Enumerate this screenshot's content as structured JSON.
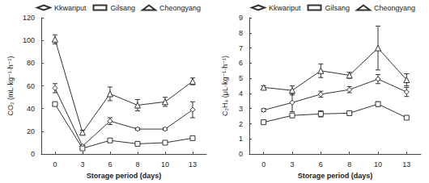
{
  "chart_data": [
    {
      "type": "line",
      "x_label": "Storage period (days)",
      "y_label": "CO₂ (mL·kg⁻¹·h⁻¹)",
      "categories": [
        "0",
        "3",
        "6",
        "8",
        "10",
        "13"
      ],
      "ylim": [
        0,
        120
      ],
      "yticks": [
        0,
        20,
        40,
        60,
        80,
        100,
        120
      ],
      "grid": false,
      "legend": "top",
      "series": [
        {
          "name": "Kkwariput",
          "color": "#333333",
          "marker": "diamond",
          "values": [
            58,
            7,
            29,
            22,
            22,
            39
          ],
          "errors": [
            4,
            1,
            3,
            1,
            1,
            7
          ]
        },
        {
          "name": "Gilsang",
          "color": "#333333",
          "marker": "square",
          "values": [
            44,
            5,
            12,
            9,
            10,
            14
          ],
          "errors": [
            1,
            1,
            1,
            1,
            1,
            1
          ]
        },
        {
          "name": "Cheongyang",
          "color": "#333333",
          "marker": "triangle",
          "values": [
            101,
            19,
            53,
            43,
            46,
            64
          ],
          "errors": [
            4,
            2,
            6,
            5,
            4,
            3
          ]
        }
      ]
    },
    {
      "type": "line",
      "x_label": "Storage period (days)",
      "y_label": "C₂H₄ (μL·kg⁻¹·h⁻¹)",
      "categories": [
        "0",
        "3",
        "6",
        "8",
        "10",
        "13"
      ],
      "ylim": [
        0,
        9
      ],
      "yticks": [
        0,
        1,
        2,
        3,
        4,
        5,
        6,
        7,
        8,
        9
      ],
      "grid": false,
      "legend": "top",
      "series": [
        {
          "name": "Kkwariput",
          "color": "#333333",
          "marker": "diamond",
          "values": [
            2.9,
            3.4,
            3.95,
            4.25,
            4.95,
            4.1
          ],
          "errors": [
            0.1,
            0.6,
            0.2,
            0.2,
            0.3,
            0.3
          ]
        },
        {
          "name": "Gilsang",
          "color": "#333333",
          "marker": "square",
          "values": [
            2.1,
            2.55,
            2.65,
            2.7,
            3.3,
            2.4
          ],
          "errors": [
            0.05,
            0.1,
            0.2,
            0.15,
            0.15,
            0.1
          ]
        },
        {
          "name": "Cheongyang",
          "color": "#333333",
          "marker": "triangle",
          "values": [
            4.4,
            4.2,
            5.5,
            5.2,
            7.0,
            4.9
          ],
          "errors": [
            0.1,
            0.3,
            0.45,
            0.2,
            1.45,
            0.4
          ]
        }
      ]
    }
  ]
}
